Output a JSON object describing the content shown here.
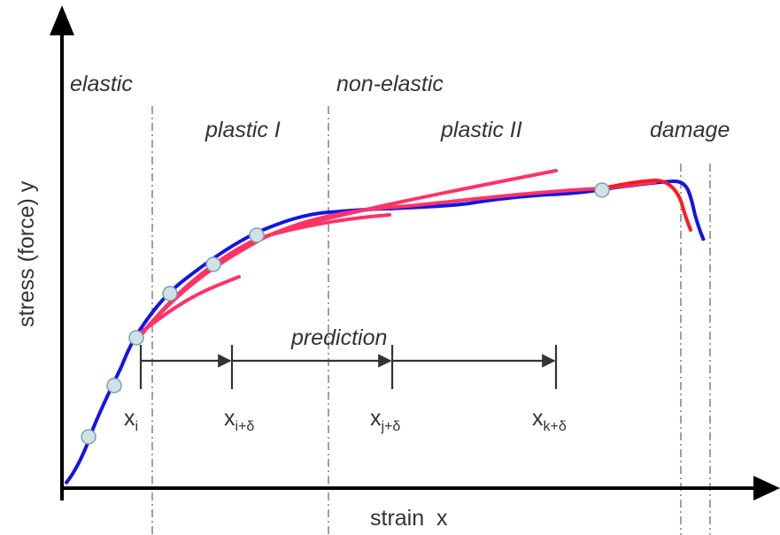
{
  "axes": {
    "x_label": "strain  x",
    "y_label": "stress (force) y"
  },
  "regions": {
    "elastic": "elastic",
    "non_elastic": "non-elastic",
    "plastic_1": "plastic I",
    "plastic_2": "plastic II",
    "damage": "damage"
  },
  "prediction_label": "prediction",
  "markers": [
    {
      "base": "x",
      "sub": "i"
    },
    {
      "base": "x",
      "sub": "i+δ"
    },
    {
      "base": "x",
      "sub": "j+δ"
    },
    {
      "base": "x",
      "sub": "k+δ"
    }
  ],
  "colors": {
    "axis": "#000000",
    "measured_curve": "#1414e6",
    "fitted_curves": "#ff3366",
    "damage_fit": "#ff1a1a",
    "sample_points": "#cfe3e6",
    "boundary_lines": "#888888",
    "text": "#333333"
  }
}
